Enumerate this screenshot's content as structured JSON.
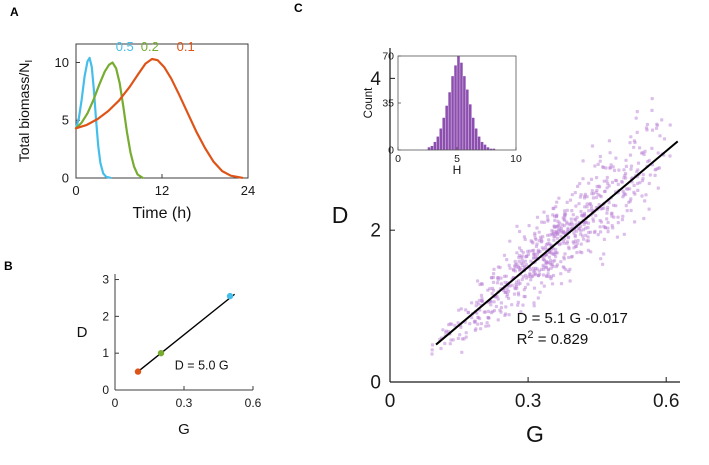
{
  "panels": {
    "a": {
      "label": "A"
    },
    "b": {
      "label": "B"
    },
    "c": {
      "label": "C"
    }
  },
  "chart_data": [
    {
      "id": "panel-a",
      "type": "line",
      "xlabel": "Time (h)",
      "ylabel": {
        "text": "Total biomass/N",
        "sub": "I"
      },
      "xlim": [
        0,
        24
      ],
      "ylim": [
        0,
        11.6
      ],
      "xticks": [
        0,
        12,
        24
      ],
      "yticks": [
        0,
        5,
        10
      ],
      "box": true,
      "series": [
        {
          "name": "0.5",
          "color": "#45BEE9",
          "label_pos": [
            6.8,
            11.0
          ],
          "x": [
            0,
            0.4,
            0.8,
            1.2,
            1.6,
            1.9,
            2.2,
            2.5,
            2.8,
            3.1,
            3.4,
            3.8,
            4.2,
            4.8
          ],
          "y": [
            4.3,
            5.2,
            6.8,
            8.8,
            10.1,
            10.4,
            9.6,
            7.6,
            5.0,
            2.8,
            1.3,
            0.4,
            0.1,
            0.02
          ]
        },
        {
          "name": "0.2",
          "color": "#77AC30",
          "label_pos": [
            10.3,
            11.0
          ],
          "x": [
            0,
            0.8,
            1.6,
            2.4,
            3.2,
            4.0,
            4.6,
            5.1,
            5.6,
            6.1,
            6.6,
            7.1,
            7.6,
            8.1,
            8.6,
            9.3
          ],
          "y": [
            4.3,
            4.8,
            5.6,
            6.7,
            8.0,
            9.2,
            9.8,
            10.0,
            9.5,
            8.2,
            6.2,
            4.0,
            2.2,
            1.0,
            0.3,
            0.02
          ]
        },
        {
          "name": "0.1",
          "color": "#DE5418",
          "label_pos": [
            15.3,
            11.0
          ],
          "x": [
            0,
            1.5,
            3,
            4.5,
            6,
            7.5,
            8.7,
            9.7,
            10.6,
            11.4,
            12.3,
            13.3,
            14.4,
            15.6,
            16.8,
            18,
            19.2,
            20.4,
            21.6,
            23.2
          ],
          "y": [
            4.3,
            4.6,
            5.1,
            5.8,
            6.7,
            7.9,
            9.0,
            9.9,
            10.3,
            10.2,
            9.6,
            8.6,
            7.2,
            5.6,
            4.0,
            2.6,
            1.4,
            0.6,
            0.2,
            0.02
          ]
        }
      ]
    },
    {
      "id": "panel-b",
      "type": "scatter",
      "xlabel": "G",
      "ylabel": "D",
      "xlim": [
        0,
        0.6
      ],
      "ylim": [
        0,
        3.15
      ],
      "xticks": [
        0,
        0.3,
        0.6
      ],
      "yticks": [
        0,
        1,
        2,
        3
      ],
      "points": [
        {
          "x": 0.1,
          "y": 0.5,
          "color": "#DE5418"
        },
        {
          "x": 0.2,
          "y": 1.0,
          "color": "#77AC30"
        },
        {
          "x": 0.5,
          "y": 2.55,
          "color": "#45BEE9"
        }
      ],
      "fit": {
        "slope": 5.0,
        "intercept": 0,
        "x1": 0.09,
        "x2": 0.52
      },
      "annotation": {
        "text": "D = 5.0 G",
        "pos": [
          0.26,
          0.55
        ]
      }
    },
    {
      "id": "panel-c",
      "type": "scatter",
      "xlabel": "G",
      "ylabel": "D",
      "xlim": [
        0,
        0.63
      ],
      "ylim": [
        0,
        4.4
      ],
      "xticks": [
        0,
        0.3,
        0.6
      ],
      "yticks": [
        0,
        2,
        4
      ],
      "point_color": "#BA7FD6",
      "point_opacity": 0.5,
      "points_spec": {
        "n": 750,
        "seed": 12345,
        "x_min": 0.08,
        "x_max": 0.63,
        "slope": 5.1,
        "intercept": -0.017,
        "noise_base": 0.08,
        "noise_slope": 0.5
      },
      "fit": {
        "slope": 5.1,
        "intercept": -0.017,
        "x1": 0.1,
        "x2": 0.625
      },
      "annotations": [
        {
          "text": "D = 5.1 G -0.017",
          "pos": [
            0.275,
            0.78
          ]
        },
        {
          "prefix": "R",
          "sup": "2",
          "suffix": " = 0.829",
          "pos": [
            0.275,
            0.5
          ]
        }
      ],
      "inset": {
        "type": "bar",
        "xlabel": "H",
        "ylabel": "Count",
        "xlim": [
          0,
          10
        ],
        "ylim": [
          0,
          70
        ],
        "xticks": [
          0,
          5,
          10
        ],
        "yticks": [
          0,
          35,
          70
        ],
        "bar_color": "#8D4FAF",
        "bin_start": 2.5,
        "bin_width": 0.25,
        "counts": [
          2,
          3,
          6,
          10,
          16,
          24,
          33,
          43,
          55,
          63,
          70,
          65,
          55,
          45,
          34,
          24,
          16,
          10,
          6,
          4,
          2,
          1,
          1
        ]
      }
    }
  ]
}
